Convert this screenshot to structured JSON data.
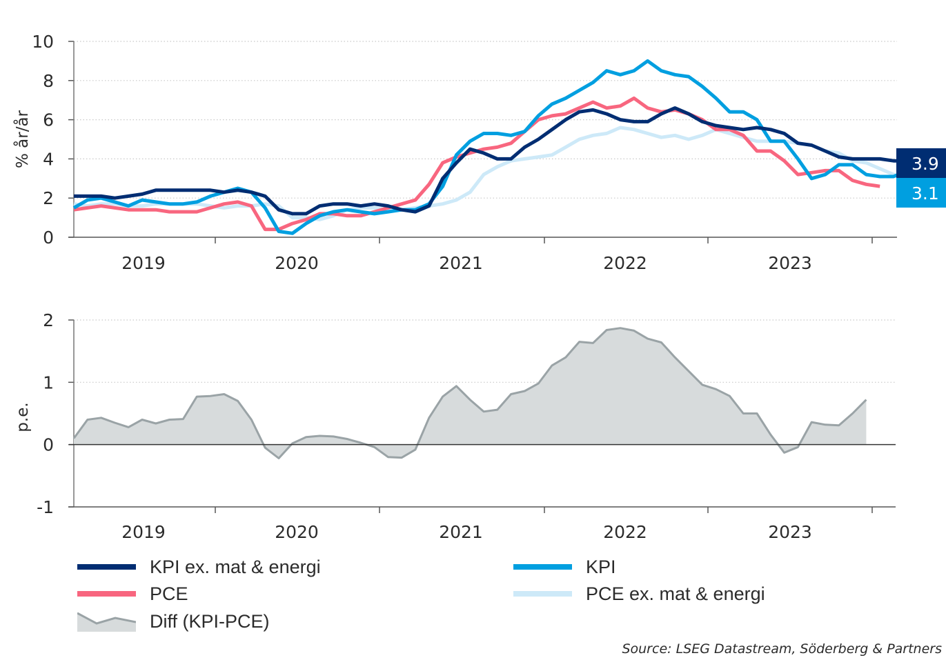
{
  "chart_data": [
    {
      "type": "line",
      "ylabel": "% år/år",
      "ylim": [
        0,
        10
      ],
      "yticks": [
        "0",
        "2",
        "4",
        "6",
        "8",
        "10"
      ],
      "grid": true,
      "xlabels": [
        "2019",
        "2020",
        "2021",
        "2022",
        "2023"
      ],
      "x_start": "2019-02",
      "x_frequency": "monthly",
      "series": [
        {
          "name": "PCE ex. mat & energi",
          "color": "#cde9f8",
          "values": [
            1.7,
            1.6,
            1.7,
            1.7,
            1.6,
            1.6,
            1.7,
            1.7,
            1.7,
            1.7,
            1.6,
            1.5,
            1.6,
            1.6,
            1.7,
            1.6,
            1.0,
            1.0,
            0.9,
            1.1,
            1.4,
            1.5,
            1.5,
            1.4,
            1.4,
            1.5,
            1.6,
            1.7,
            1.9,
            2.3,
            3.2,
            3.6,
            3.9,
            4.0,
            4.1,
            4.2,
            4.6,
            5.0,
            5.2,
            5.3,
            5.6,
            5.5,
            5.3,
            5.1,
            5.2,
            5.0,
            5.2,
            5.5,
            5.3,
            5.1,
            4.9,
            4.9,
            4.9,
            4.8,
            4.7,
            4.4,
            4.3,
            3.9,
            3.8,
            3.5,
            3.2,
            2.9
          ]
        },
        {
          "name": "PCE",
          "color": "#f8667f",
          "values": [
            1.4,
            1.5,
            1.6,
            1.5,
            1.4,
            1.4,
            1.4,
            1.3,
            1.3,
            1.3,
            1.5,
            1.7,
            1.8,
            1.6,
            0.4,
            0.4,
            0.7,
            0.9,
            1.2,
            1.2,
            1.1,
            1.1,
            1.3,
            1.5,
            1.7,
            1.9,
            2.7,
            3.8,
            4.1,
            4.3,
            4.5,
            4.6,
            4.8,
            5.4,
            6.0,
            6.2,
            6.3,
            6.6,
            6.9,
            6.6,
            6.7,
            7.1,
            6.6,
            6.4,
            6.5,
            6.3,
            6.0,
            5.5,
            5.5,
            5.2,
            4.4,
            4.4,
            3.9,
            3.2,
            3.3,
            3.4,
            3.4,
            2.9,
            2.7,
            2.6
          ]
        },
        {
          "name": "KPI",
          "color": "#009fe0",
          "values": [
            1.5,
            1.9,
            2.0,
            1.8,
            1.6,
            1.9,
            1.8,
            1.7,
            1.7,
            1.8,
            2.1,
            2.3,
            2.5,
            2.3,
            1.5,
            0.3,
            0.2,
            0.7,
            1.1,
            1.3,
            1.4,
            1.3,
            1.2,
            1.3,
            1.4,
            1.4,
            1.7,
            2.6,
            4.2,
            4.9,
            5.3,
            5.3,
            5.2,
            5.4,
            6.2,
            6.8,
            7.1,
            7.5,
            7.9,
            8.5,
            8.3,
            8.5,
            9.0,
            8.5,
            8.3,
            8.2,
            7.7,
            7.1,
            6.4,
            6.4,
            6.0,
            4.9,
            4.9,
            4.0,
            3.0,
            3.2,
            3.7,
            3.7,
            3.2,
            3.1,
            3.1,
            3.4,
            3.1
          ]
        },
        {
          "name": "KPI ex. mat & energi",
          "color": "#002d72",
          "values": [
            2.1,
            2.1,
            2.1,
            2.0,
            2.1,
            2.2,
            2.4,
            2.4,
            2.4,
            2.4,
            2.4,
            2.3,
            2.4,
            2.3,
            2.1,
            1.4,
            1.2,
            1.2,
            1.6,
            1.7,
            1.7,
            1.6,
            1.7,
            1.6,
            1.4,
            1.3,
            1.6,
            3.0,
            3.8,
            4.5,
            4.3,
            4.0,
            4.0,
            4.6,
            5.0,
            5.5,
            6.0,
            6.4,
            6.5,
            6.3,
            6.0,
            5.9,
            5.9,
            6.3,
            6.6,
            6.3,
            5.9,
            5.7,
            5.6,
            5.5,
            5.6,
            5.5,
            5.3,
            4.8,
            4.7,
            4.4,
            4.1,
            4.0,
            4.0,
            4.0,
            3.9,
            3.9
          ]
        }
      ],
      "end_labels": [
        {
          "series": "KPI ex. mat & energi",
          "text": "3.9",
          "color": "#002d72"
        },
        {
          "series": "KPI",
          "text": "3.1",
          "color": "#009fe0"
        }
      ]
    },
    {
      "type": "area",
      "ylabel": "p.e.",
      "ylim": [
        -1,
        2
      ],
      "yticks": [
        "-1",
        "0",
        "1",
        "2"
      ],
      "grid": true,
      "xlabels": [
        "2019",
        "2020",
        "2021",
        "2022",
        "2023"
      ],
      "x_start": "2019-02",
      "x_frequency": "monthly",
      "series": [
        {
          "name": "Diff (KPI-PCE)",
          "fill": "#d7dbdc",
          "stroke": "#9aa3a6",
          "values": [
            0.1,
            0.4,
            0.43,
            0.35,
            0.28,
            0.4,
            0.34,
            0.4,
            0.41,
            0.77,
            0.78,
            0.81,
            0.7,
            0.4,
            -0.05,
            -0.22,
            0.02,
            0.12,
            0.14,
            0.13,
            0.09,
            0.03,
            -0.04,
            -0.2,
            -0.21,
            -0.08,
            0.43,
            0.77,
            0.94,
            0.72,
            0.53,
            0.56,
            0.81,
            0.86,
            0.98,
            1.27,
            1.4,
            1.65,
            1.63,
            1.84,
            1.87,
            1.83,
            1.7,
            1.64,
            1.4,
            1.18,
            0.96,
            0.89,
            0.78,
            0.5,
            0.5,
            0.16,
            -0.13,
            -0.04,
            0.36,
            0.32,
            0.31,
            0.5,
            0.72
          ]
        }
      ]
    }
  ],
  "legend": [
    {
      "label": "KPI ex. mat & energi",
      "color": "#002d72",
      "kind": "line"
    },
    {
      "label": "KPI",
      "color": "#009fe0",
      "kind": "line"
    },
    {
      "label": "PCE",
      "color": "#f8667f",
      "kind": "line"
    },
    {
      "label": "PCE ex. mat & energi",
      "color": "#cde9f8",
      "kind": "line"
    },
    {
      "label": "Diff (KPI-PCE)",
      "color": "#d7dbdc",
      "kind": "area"
    }
  ],
  "source": "Source: LSEG Datastream, Söderberg & Partners"
}
